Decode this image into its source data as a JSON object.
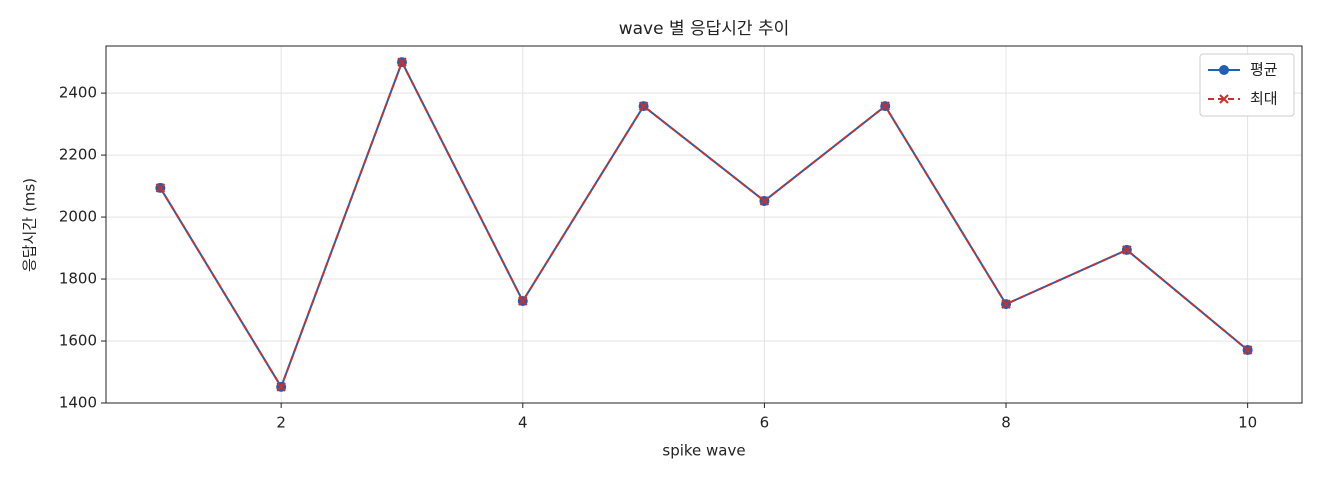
{
  "chart_data": {
    "type": "line",
    "title": "wave 별 응답시간 추이",
    "x_label": "spike wave",
    "y_label": "응답시간 (ms)",
    "x": [
      1,
      2,
      3,
      4,
      5,
      6,
      7,
      8,
      9,
      10
    ],
    "series": [
      {
        "name": "평균",
        "color": "#1f5fb4",
        "marker": "circle",
        "dashed": false,
        "values": [
          2094,
          1452,
          2500,
          1729,
          2358,
          2052,
          2358,
          1719,
          1894,
          1571
        ]
      },
      {
        "name": "최대",
        "color": "#c8312f",
        "marker": "x",
        "dashed": true,
        "values": [
          2094,
          1452,
          2500,
          1729,
          2358,
          2052,
          2358,
          1719,
          1894,
          1571
        ]
      }
    ],
    "xlim": [
      0.55,
      10.45
    ],
    "xticks": [
      2,
      4,
      6,
      8,
      10
    ],
    "ylim": [
      1400,
      2552
    ],
    "yticks": [
      1400,
      1600,
      1800,
      2000,
      2200,
      2400
    ],
    "grid": true,
    "legend": "upper right"
  }
}
